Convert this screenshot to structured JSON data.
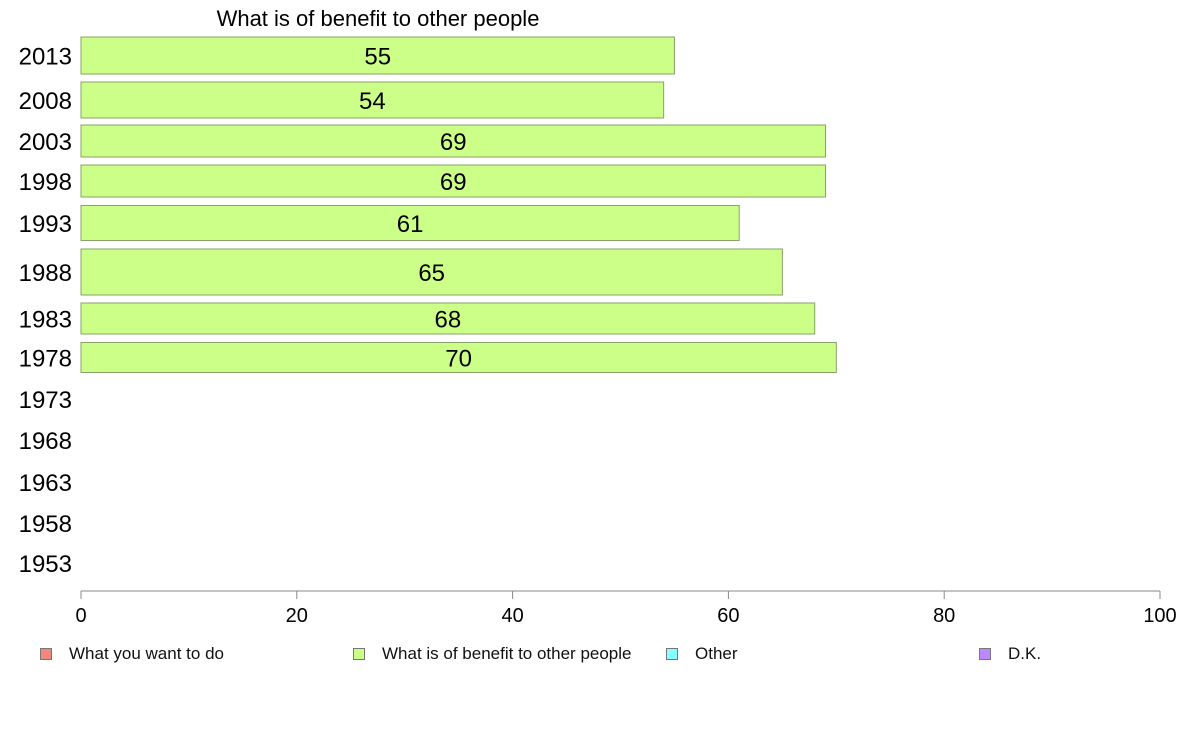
{
  "chart_data": {
    "type": "bar",
    "orientation": "horizontal",
    "title": "What is of benefit to other people",
    "categories": [
      "2013",
      "2008",
      "2003",
      "1998",
      "1993",
      "1988",
      "1983",
      "1978",
      "1973",
      "1968",
      "1963",
      "1958",
      "1953"
    ],
    "series": [
      {
        "name": "What is of benefit to other people",
        "color": "#ccff88",
        "values": [
          55,
          54,
          69,
          69,
          61,
          65,
          68,
          70,
          null,
          null,
          null,
          null,
          null
        ]
      }
    ],
    "xlim": [
      0,
      100
    ],
    "xticks": [
      "0",
      "20",
      "40",
      "60",
      "80",
      "100"
    ],
    "grid": false,
    "legend": {
      "placement": "bottom",
      "items": [
        {
          "label": "What you want to do",
          "color": "#f08880"
        },
        {
          "label": "What is of benefit to other people",
          "color": "#ccff88"
        },
        {
          "label": "Other",
          "color": "#88ffff"
        },
        {
          "label": "D.K.",
          "color": "#bb88ff"
        }
      ]
    }
  }
}
